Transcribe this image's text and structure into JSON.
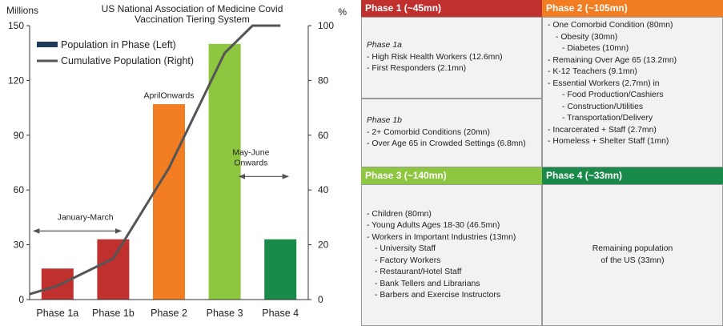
{
  "chart_data": {
    "type": "bar",
    "title": "US National  Association of Medicine Covid Vaccination Tiering System",
    "title_lines": [
      "US National  Association of Medicine Covid",
      "Vaccination Tiering System"
    ],
    "ylabel_left": "Millions",
    "ylabel_right": "%",
    "categories": [
      "Phase  1a",
      "Phase  1b",
      "Phase  2",
      "Phase  3",
      "Phase  4"
    ],
    "ylim_left": [
      0,
      150
    ],
    "yticks_left": [
      0,
      30,
      60,
      90,
      120,
      150
    ],
    "ylim_right": [
      0,
      100
    ],
    "yticks_right": [
      0,
      20,
      40,
      60,
      80,
      100
    ],
    "grid": false,
    "legend_position": "top-left",
    "series": [
      {
        "name": "Population in Phase (Left)",
        "type": "bar",
        "axis": "left",
        "values": [
          17,
          33,
          107,
          140,
          33
        ],
        "colors": [
          "#c0302f",
          "#c0302f",
          "#f27d22",
          "#8dc63f",
          "#1a8a4a"
        ]
      },
      {
        "name": "Cumulative Population (Right)",
        "type": "line",
        "axis": "right",
        "x": [
          -0.5,
          0,
          1,
          2,
          3,
          3.5,
          4
        ],
        "values": [
          2,
          5,
          15,
          48,
          90,
          100,
          100
        ]
      }
    ],
    "annotations": [
      {
        "text": "January-March",
        "x": 0.5,
        "y": 45,
        "arrow": true
      },
      {
        "text": "AprilOnwards",
        "x": 2,
        "y": 112,
        "arrow": false
      },
      {
        "text": "May-June Onwards",
        "lines": [
          "May-June",
          "Onwards"
        ],
        "x": 3.5,
        "y": 81,
        "arrow": true
      }
    ],
    "legend_swatch_color": "#1f3b57"
  },
  "phases": [
    {
      "header": "Phase 1 (~45mn)",
      "header_color": "#c0302f",
      "groups": [
        {
          "title": "Phase 1a",
          "items": [
            {
              "text": "- High Risk Health Workers (12.6mn)",
              "indent": 0
            },
            {
              "text": "- First Responders (2.1mn)",
              "indent": 0
            }
          ]
        },
        {
          "title": "Phase 1b",
          "items": [
            {
              "text": "- 2+ Comorbid Conditions (20mn)",
              "indent": 0
            },
            {
              "text": "- Over Age 65 in Crowded Settings (6.8mn)",
              "indent": 0
            }
          ]
        }
      ]
    },
    {
      "header": "Phase 2 (~105mn)",
      "header_color": "#f27d22",
      "items": [
        {
          "text": "- One Comorbid Condition (80mn)",
          "indent": 0
        },
        {
          "text": "- Obesity (30mn)",
          "indent": 1
        },
        {
          "text": "- Diabetes (10mn)",
          "indent": 2
        },
        {
          "text": "- Remaining Over Age 65 (13.2mn)",
          "indent": 0
        },
        {
          "text": "- K-12 Teachers (9.1mn)",
          "indent": 0
        },
        {
          "text": "- Essential Workers (2.7mn) in",
          "indent": 0
        },
        {
          "text": "- Food Production/Cashiers",
          "indent": 2
        },
        {
          "text": "- Construction/Utilities",
          "indent": 2
        },
        {
          "text": "- Transportation/Delivery",
          "indent": 2
        },
        {
          "text": "- Incarcerated + Staff (2.7mn)",
          "indent": 0
        },
        {
          "text": "- Homeless + Shelter Staff (1mn)",
          "indent": 0
        }
      ]
    },
    {
      "header": "Phase 3 (~140mn)",
      "header_color": "#8dc63f",
      "items": [
        {
          "text": "- Children (80mn)",
          "indent": 0
        },
        {
          "text": "- Young Adults Ages 18-30 (46.5mn)",
          "indent": 0
        },
        {
          "text": "- Workers in Important Industries (13mn)",
          "indent": 0
        },
        {
          "text": "- University Staff",
          "indent": 1
        },
        {
          "text": "- Factory Workers",
          "indent": 1
        },
        {
          "text": "- Restaurant/Hotel Staff",
          "indent": 1
        },
        {
          "text": "- Bank Tellers and Librarians",
          "indent": 1
        },
        {
          "text": "- Barbers and Exercise Instructors",
          "indent": 1
        }
      ]
    },
    {
      "header": "Phase 4 (~33mn)",
      "header_color": "#1a8a4a",
      "body_lines": [
        "Remaining population",
        "of the US (33mn)"
      ]
    }
  ]
}
